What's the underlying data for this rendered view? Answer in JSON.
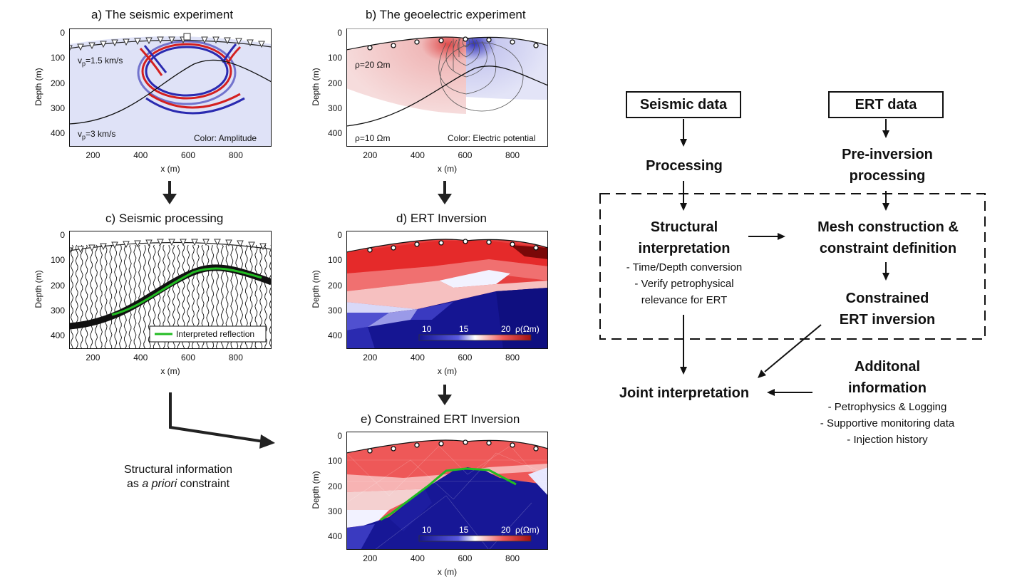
{
  "panels": {
    "a": {
      "title": "a) The seismic experiment",
      "vp_top": "v",
      "vp_top_sub": "p",
      "vp_top_val": "=1.5 km/s",
      "vp_bot": "v",
      "vp_bot_sub": "p",
      "vp_bot_val": "=3 km/s",
      "color_note": "Color: Amplitude"
    },
    "b": {
      "title": "b) The geoelectric experiment",
      "rho_top": "ρ=20 Ωm",
      "rho_bot": "ρ=10 Ωm",
      "color_note": "Color: Electric potential"
    },
    "c": {
      "title": "c) Seismic processing",
      "legend": "Interpreted reflection"
    },
    "d": {
      "title": "d) ERT Inversion",
      "cb_ticks": [
        "10",
        "15",
        "20"
      ],
      "cb_unit": "ρ(Ωm)"
    },
    "e": {
      "title": "e) Constrained ERT Inversion",
      "cb_ticks": [
        "10",
        "15",
        "20"
      ],
      "cb_unit": "ρ(Ωm)"
    }
  },
  "axes": {
    "ylabel": "Depth (m)",
    "xlabel": "x (m)",
    "yticks": [
      "0",
      "100",
      "200",
      "300",
      "400"
    ],
    "xticks": [
      "200",
      "400",
      "600",
      "800"
    ]
  },
  "structural_note": {
    "line1": "Structural information",
    "line2_pre": "as ",
    "line2_em": "a priori",
    "line2_post": " constraint"
  },
  "flow": {
    "seismic_data": "Seismic data",
    "ert_data": "ERT data",
    "processing": "Processing",
    "pre_inversion_1": "Pre-inversion",
    "pre_inversion_2": "processing",
    "structural_1": "Structural",
    "structural_2": "interpretation",
    "structural_sub1": "- Time/Depth conversion",
    "structural_sub2": "- Verify petrophysical",
    "structural_sub3": "relevance for ERT",
    "mesh_1": "Mesh construction &",
    "mesh_2": "constraint definition",
    "constrained_1": "Constrained",
    "constrained_2": "ERT inversion",
    "joint": "Joint interpretation",
    "additional_1": "Additonal",
    "additional_2": "information",
    "additional_sub1": "- Petrophysics & Logging",
    "additional_sub2": "- Supportive monitoring data",
    "additional_sub3": "- Injection history"
  },
  "colors": {
    "red": "#d7191c",
    "blue": "#1a1aa8",
    "green": "#22bb22",
    "light_blue_bg": "#dfe2f7"
  }
}
